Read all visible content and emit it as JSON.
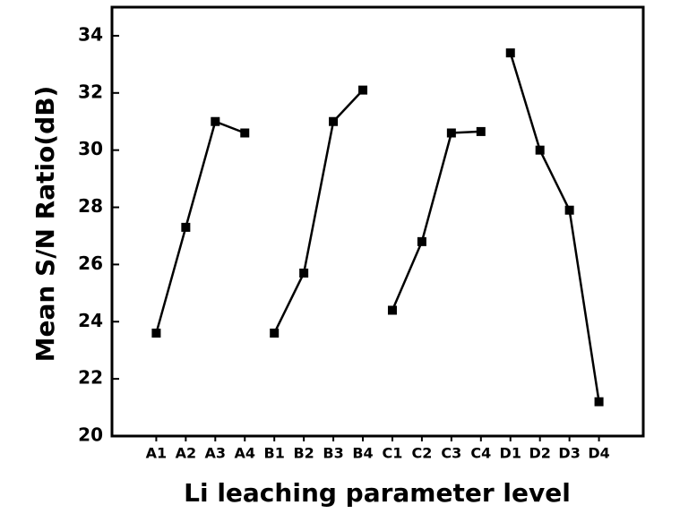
{
  "chart_data": {
    "type": "line",
    "xlabel": "Li leaching parameter level",
    "ylabel": "Mean S/N Ratio(dB)",
    "categories": [
      "A1",
      "A2",
      "A3",
      "A4",
      "B1",
      "B2",
      "B3",
      "B4",
      "C1",
      "C2",
      "C3",
      "C4",
      "D1",
      "D2",
      "D3",
      "D4"
    ],
    "series": [
      {
        "color": "#000000",
        "values": [
          23.6,
          27.3,
          31.0,
          30.6,
          null,
          null,
          null,
          null,
          null,
          null,
          null,
          null,
          null,
          null,
          null,
          null
        ]
      },
      {
        "color": "#000000",
        "values": [
          null,
          null,
          null,
          null,
          23.6,
          25.7,
          31.0,
          32.1,
          null,
          null,
          null,
          null,
          null,
          null,
          null,
          null
        ]
      },
      {
        "color": "#000000",
        "values": [
          null,
          null,
          null,
          null,
          null,
          null,
          null,
          null,
          24.4,
          26.8,
          30.6,
          30.65,
          null,
          null,
          null,
          null
        ]
      },
      {
        "color": "#000000",
        "values": [
          null,
          null,
          null,
          null,
          null,
          null,
          null,
          null,
          null,
          null,
          null,
          null,
          33.4,
          30.0,
          27.9,
          21.2
        ]
      }
    ],
    "ylim": [
      20,
      35
    ],
    "yticks": [
      20,
      22,
      24,
      26,
      28,
      30,
      32,
      34
    ],
    "grid": false
  }
}
